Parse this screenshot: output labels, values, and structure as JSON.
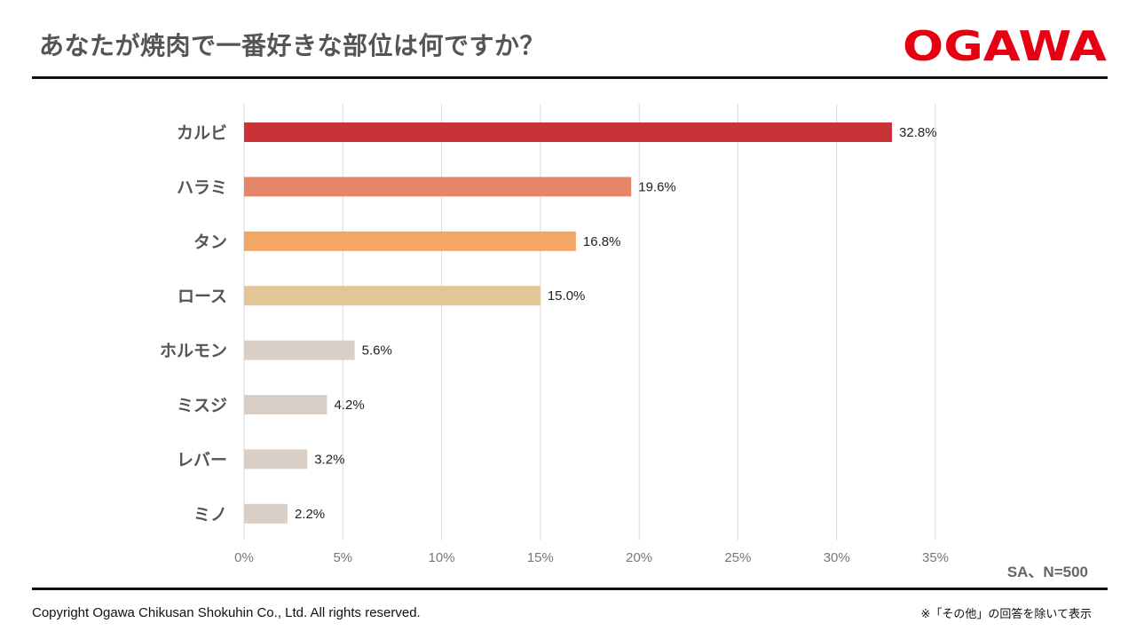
{
  "header": {
    "title": "あなたが焼肉で一番好きな部位は何ですか？",
    "logo_text": "OGAWA",
    "logo_color": "#e60012"
  },
  "chart_data": {
    "type": "bar",
    "orientation": "horizontal",
    "categories": [
      "カルビ",
      "ハラミ",
      "タン",
      "ロース",
      "ホルモン",
      "ミスジ",
      "レバー",
      "ミノ"
    ],
    "values": [
      32.8,
      19.6,
      16.8,
      15.0,
      5.6,
      4.2,
      3.2,
      2.2
    ],
    "value_labels": [
      "32.8%",
      "19.6%",
      "16.8%",
      "15.0%",
      "5.6%",
      "4.2%",
      "3.2%",
      "2.2%"
    ],
    "colors": [
      "#c93237",
      "#e5866a",
      "#f3a765",
      "#e3c597",
      "#d9cfc6",
      "#d9cfc6",
      "#d9cfc6",
      "#d9cfc6"
    ],
    "xlim": [
      0,
      35
    ],
    "xticks": [
      0,
      5,
      10,
      15,
      20,
      25,
      30,
      35
    ],
    "xtick_labels": [
      "0%",
      "5%",
      "10%",
      "15%",
      "20%",
      "25%",
      "30%",
      "35%"
    ],
    "grid": "vertical",
    "legend": "none"
  },
  "footer": {
    "sample": "SA、N=500",
    "copyright": "Copyright Ogawa Chikusan Shokuhin Co., Ltd. All rights reserved.",
    "note": "※「その他」の回答を除いて表示"
  }
}
